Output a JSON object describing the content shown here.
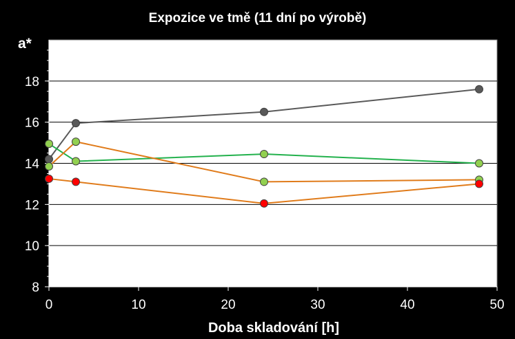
{
  "chart_data": {
    "type": "line",
    "title": "Expozice ve tmě (11 dní po výrobě)",
    "xlabel": "Doba skladování [h]",
    "ylabel": "a*",
    "xlim": [
      0,
      50
    ],
    "ylim": [
      8,
      20
    ],
    "x_ticks": [
      0,
      10,
      20,
      30,
      40,
      50
    ],
    "y_ticks": [
      8,
      10,
      12,
      14,
      16,
      18
    ],
    "grid": "horizontal",
    "colors": {
      "background": "#000000",
      "plot_area": "#ffffff",
      "grid": "#000000",
      "text": "#ffffff"
    },
    "series": [
      {
        "line_color": "#595959",
        "marker_color": "#595959",
        "x": [
          0,
          3,
          24,
          48
        ],
        "y": [
          14.2,
          15.95,
          16.5,
          17.6
        ]
      },
      {
        "line_color": "#22b14c",
        "marker_color": "#92d050",
        "x": [
          0,
          3,
          24,
          48
        ],
        "y": [
          14.95,
          14.1,
          14.45,
          14.0
        ]
      },
      {
        "line_color": "#e07b1a",
        "marker_color": "#92d050",
        "x": [
          0,
          3,
          24,
          48
        ],
        "y": [
          13.85,
          15.05,
          13.1,
          13.2
        ]
      },
      {
        "line_color": "#e07b1a",
        "marker_color": "#ff0000",
        "x": [
          0,
          3,
          24,
          48
        ],
        "y": [
          13.25,
          13.1,
          12.05,
          13.0
        ]
      }
    ]
  }
}
